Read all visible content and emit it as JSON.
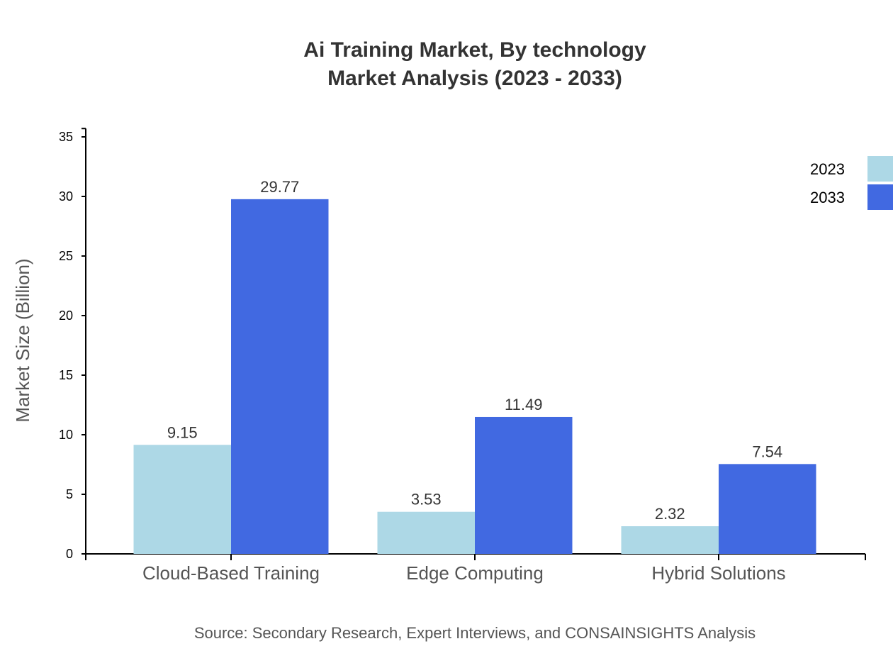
{
  "chart_data": {
    "type": "bar",
    "title": "Ai Training Market, By technology",
    "subtitle": "Market Analysis (2023 - 2033)",
    "xlabel": "",
    "ylabel": "Market Size (Billion)",
    "ylim": [
      0,
      35.7
    ],
    "yticks": [
      0,
      5,
      10,
      15,
      20,
      25,
      30,
      35
    ],
    "categories": [
      "Cloud-Based Training",
      "Edge Computing",
      "Hybrid Solutions"
    ],
    "series": [
      {
        "name": "2023",
        "color": "#add8e6",
        "values": [
          9.15,
          3.53,
          2.32
        ]
      },
      {
        "name": "2033",
        "color": "#4169e1",
        "values": [
          29.77,
          11.49,
          7.54
        ]
      }
    ],
    "grid": false,
    "legend": "top-right",
    "source": "Source: Secondary Research, Expert Interviews, and CONSAINSIGHTS Analysis"
  }
}
